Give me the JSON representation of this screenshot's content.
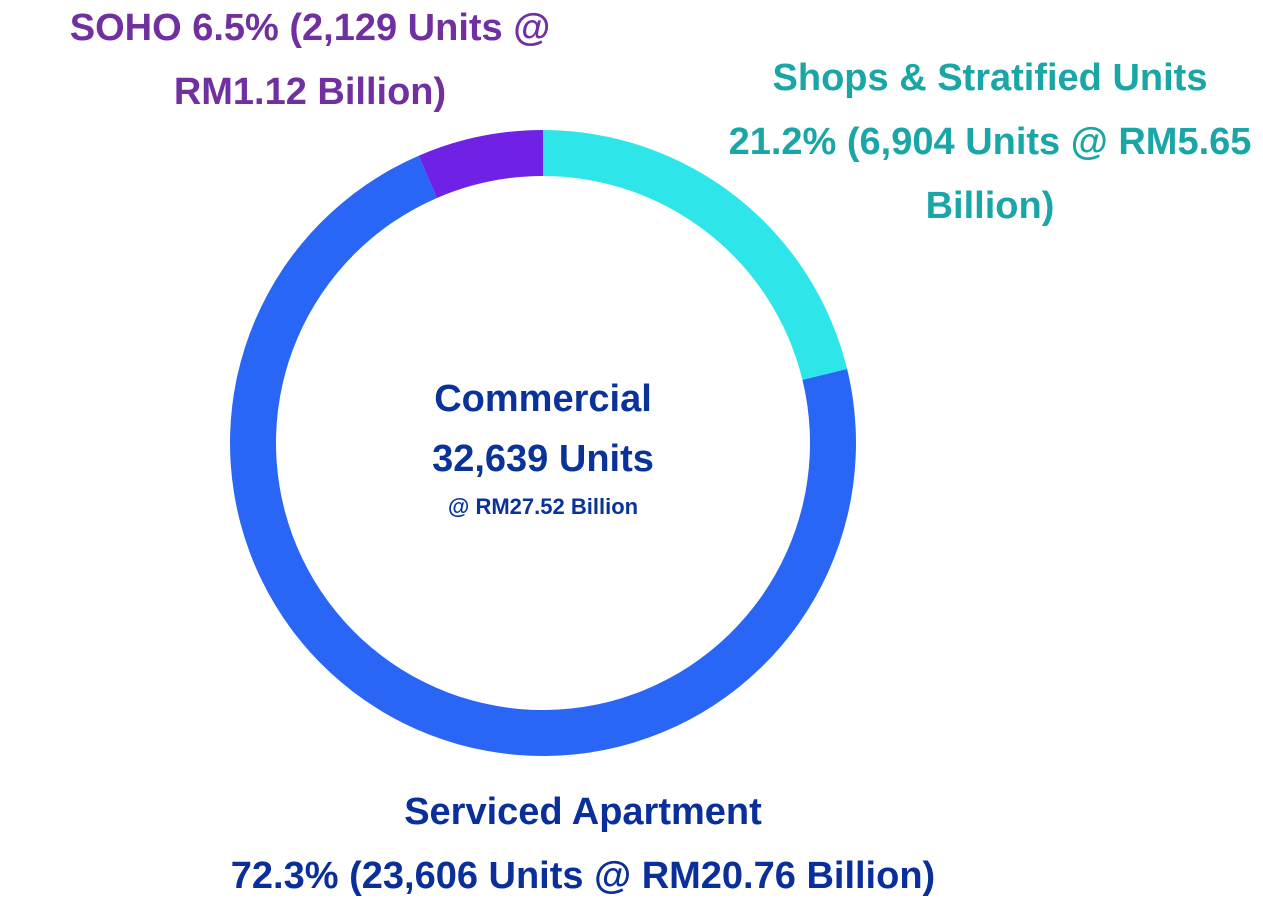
{
  "chart_data": {
    "type": "donut",
    "categories": [
      "Shops & Stratified Units",
      "Serviced Apartment",
      "SOHO"
    ],
    "values": [
      21.2,
      72.3,
      6.5
    ],
    "value_labels": [
      "21.2% (6,904 Units @ RM5.65 Billion)",
      "72.3% (23,606 Units @ RM20.76 Billion)",
      "6.5% (2,129 Units @ RM1.12 Billion)"
    ],
    "colors": [
      "#2ee6ea",
      "#2a66f5",
      "#6f22e6"
    ],
    "label_colors": [
      "#1aa6a6",
      "#0a2e9a",
      "#7030a0"
    ],
    "center_title": "Commercial",
    "center_subtitle": "32,639 Units",
    "center_note": "@ RM27.52 Billion"
  }
}
